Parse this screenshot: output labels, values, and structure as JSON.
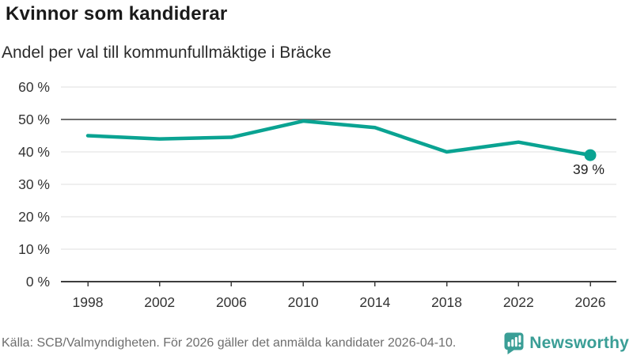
{
  "chart_data": {
    "type": "line",
    "title": "Kvinnor som kandiderar",
    "subtitle": "Andel per val till kommunfullmäktige i Bräcke",
    "x_labels": [
      "1998",
      "2002",
      "2006",
      "2010",
      "2014",
      "2018",
      "2022",
      "2026"
    ],
    "series": [
      {
        "values": [
          45,
          44,
          44.5,
          49.5,
          47.5,
          40,
          43,
          39
        ]
      }
    ],
    "ylim": [
      0,
      60
    ],
    "yticks": [
      0,
      10,
      20,
      30,
      40,
      50,
      60
    ],
    "ytick_labels": [
      "0 %",
      "10 %",
      "20 %",
      "30 %",
      "40 %",
      "50 %",
      "60 %"
    ],
    "reference_line": 50,
    "grid": true,
    "legend": "none",
    "last_point_label": "39 %"
  },
  "footer": {
    "source": "Källa: SCB/Valmyndigheten. För 2026 gäller det anmälda kandidater 2026-04-10.",
    "brand": "Newsworthy"
  },
  "colors": {
    "line": "#0aa392",
    "gridline": "#dfdfdf",
    "reference_line": "#6f6f6f",
    "axis": "#3d3d3d",
    "title_text": "#1a1a1a",
    "subtitle_text": "#2b2b2b",
    "tick_text": "#333333",
    "point_label_text": "#1f1f1f",
    "source_text": "#6e6e6e",
    "brand_teal": "#3a9e96"
  }
}
